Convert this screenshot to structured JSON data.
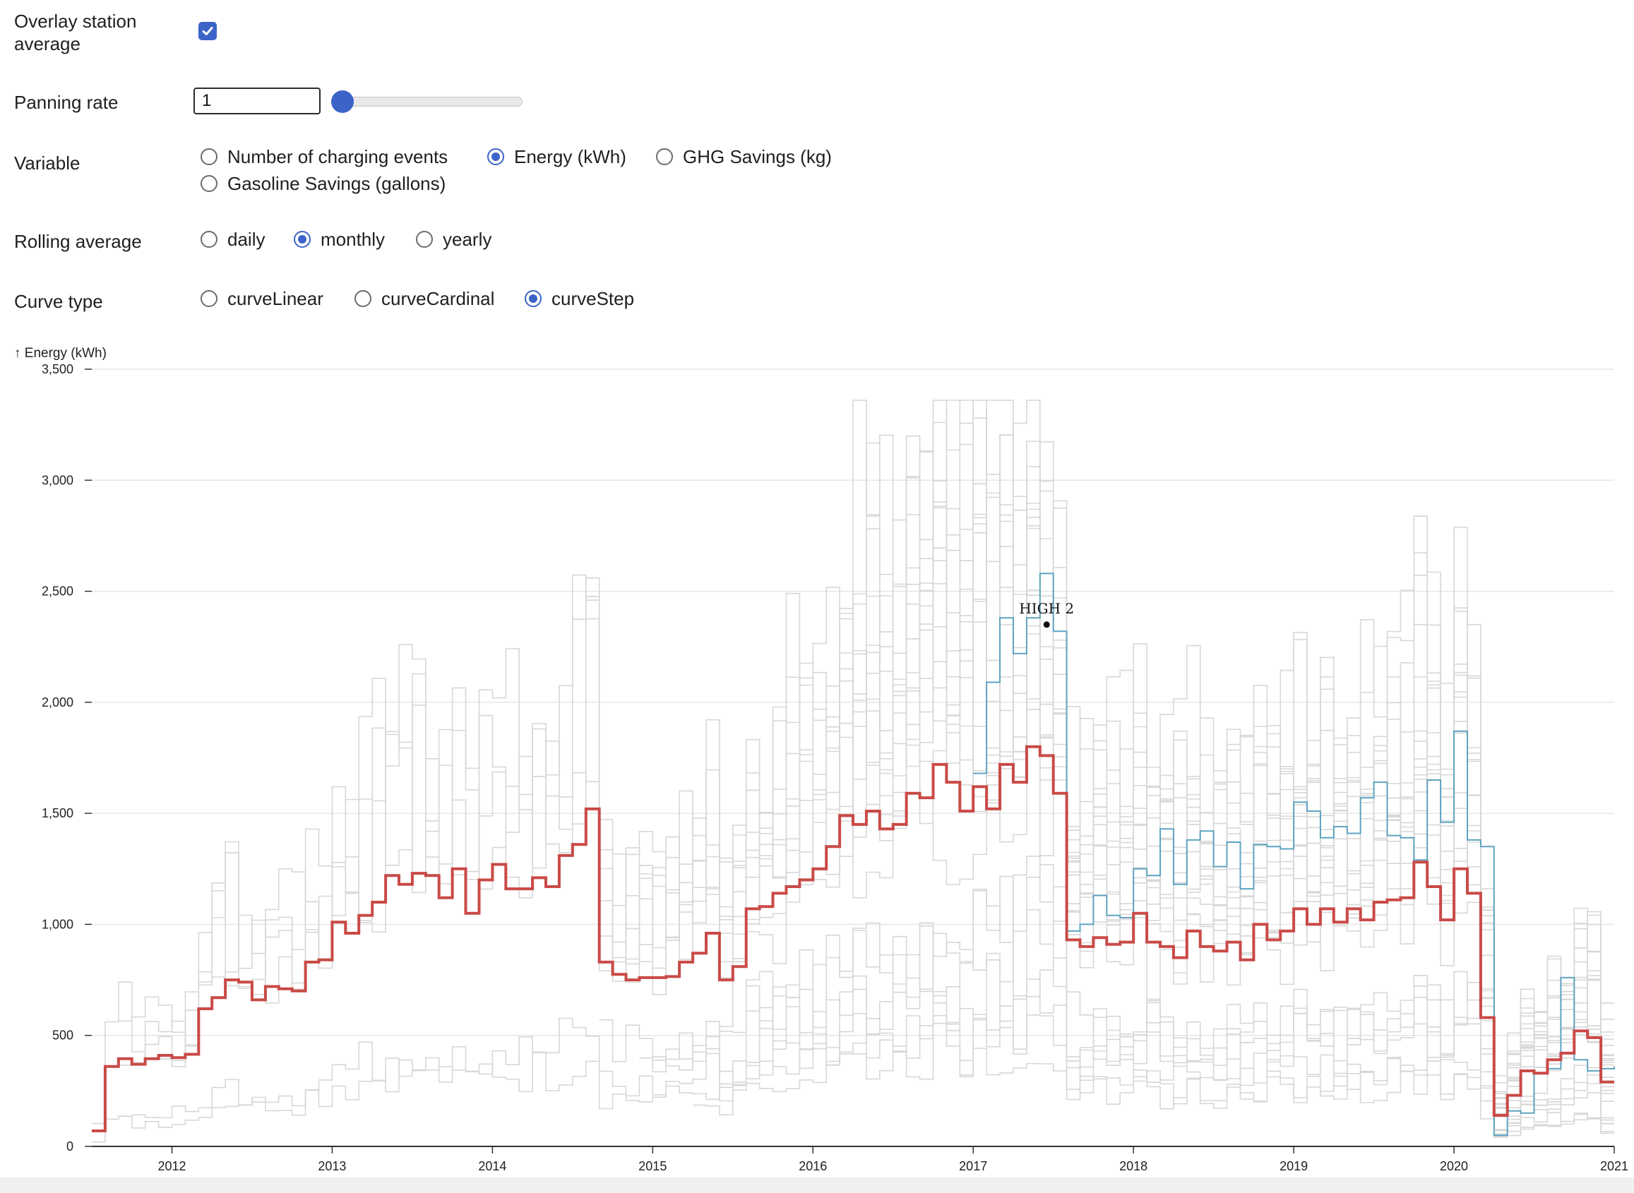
{
  "controls": {
    "overlay": {
      "label": "Overlay station average",
      "checked": true
    },
    "panning": {
      "label": "Panning rate",
      "value": "1"
    },
    "variable": {
      "label": "Variable",
      "options": [
        "Number of charging events",
        "Energy (kWh)",
        "GHG Savings (kg)",
        "Gasoline Savings (gallons)"
      ],
      "selected": "Energy (kWh)"
    },
    "rolling": {
      "label": "Rolling average",
      "options": [
        "daily",
        "monthly",
        "yearly"
      ],
      "selected": "monthly"
    },
    "curve": {
      "label": "Curve type",
      "options": [
        "curveLinear",
        "curveCardinal",
        "curveStep"
      ],
      "selected": "curveStep"
    }
  },
  "chart_data": {
    "type": "line",
    "ylabel": "↑ Energy (kWh)",
    "ylim": [
      0,
      3500
    ],
    "yticks": [
      0,
      500,
      1000,
      1500,
      2000,
      2500,
      3000,
      3500
    ],
    "xlim": [
      "2011-07",
      "2021-01"
    ],
    "xticks": [
      "2012",
      "2013",
      "2014",
      "2015",
      "2016",
      "2017",
      "2018",
      "2019",
      "2020",
      "2021"
    ],
    "grid": "horizontal",
    "colors": {
      "average": "#c94a47",
      "highlight": "#5ea3c0",
      "stations": "#d7d7d7"
    },
    "annotation": {
      "label": "HIGH 2",
      "x": "2017-06",
      "y": 2350
    },
    "series": [
      {
        "role": "average",
        "start": "2011-07",
        "values": [
          70,
          360,
          395,
          370,
          395,
          410,
          400,
          415,
          620,
          670,
          750,
          740,
          660,
          720,
          710,
          700,
          830,
          840,
          1010,
          960,
          1040,
          1100,
          1220,
          1180,
          1230,
          1220,
          1120,
          1250,
          1050,
          1200,
          1270,
          1160,
          1160,
          1210,
          1170,
          1310,
          1360,
          1520,
          830,
          775,
          750,
          760,
          760,
          765,
          830,
          870,
          960,
          750,
          810,
          1070,
          1080,
          1140,
          1170,
          1200,
          1250,
          1350,
          1490,
          1450,
          1510,
          1430,
          1450,
          1590,
          1570,
          1720,
          1640,
          1510,
          1620,
          1520,
          1720,
          1640,
          1800,
          1760,
          1590,
          930,
          900,
          940,
          910,
          920,
          1050,
          920,
          900,
          850,
          970,
          900,
          880,
          920,
          840,
          1000,
          930,
          970,
          1070,
          1000,
          1070,
          1010,
          1070,
          1020,
          1100,
          1110,
          1120,
          1280,
          1170,
          1020,
          1250,
          1140,
          580,
          140,
          230,
          340,
          330,
          390,
          420,
          520,
          490,
          290
        ]
      },
      {
        "role": "highlight",
        "name": "HIGH 2",
        "start": "2017-01",
        "values": [
          1680,
          2090,
          2380,
          2220,
          2380,
          2580,
          2320,
          970,
          1000,
          1130,
          1040,
          1030,
          1250,
          1220,
          1430,
          1180,
          1380,
          1420,
          1260,
          1370,
          1160,
          1360,
          1350,
          1340,
          1550,
          1510,
          1390,
          1440,
          1410,
          1570,
          1640,
          1400,
          1390,
          1290,
          1650,
          1460,
          1870,
          1380,
          1350,
          50,
          160,
          150,
          330,
          350,
          760,
          390,
          340,
          350,
          360
        ]
      }
    ]
  }
}
